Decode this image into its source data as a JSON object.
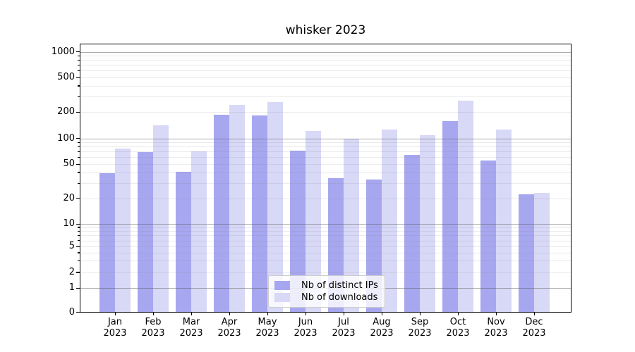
{
  "chart_data": {
    "type": "bar",
    "title": "whisker 2023",
    "categories": [
      "Jan",
      "Feb",
      "Mar",
      "Apr",
      "May",
      "Jun",
      "Jul",
      "Aug",
      "Sep",
      "Oct",
      "Nov",
      "Dec"
    ],
    "category_year": "2023",
    "series": [
      {
        "name": "Nb of distinct IPs",
        "color": "#a7a7f0",
        "values": [
          39,
          69,
          41,
          187,
          181,
          72,
          34,
          33,
          64,
          156,
          55,
          22
        ]
      },
      {
        "name": "Nb of downloads",
        "color": "#d8d8f7",
        "values": [
          76,
          141,
          70,
          240,
          260,
          121,
          99,
          125,
          109,
          270,
          127,
          23
        ]
      }
    ],
    "yscale": "symlog",
    "ylim": [
      0,
      1250
    ],
    "ytick_labels": [
      "0",
      "1",
      "2",
      "5",
      "10",
      "20",
      "50",
      "100",
      "200",
      "500",
      "1000"
    ],
    "yticks": [
      0,
      1,
      2,
      5,
      10,
      20,
      50,
      100,
      200,
      500,
      1000
    ],
    "grid": true,
    "legend_position": "lower center"
  }
}
